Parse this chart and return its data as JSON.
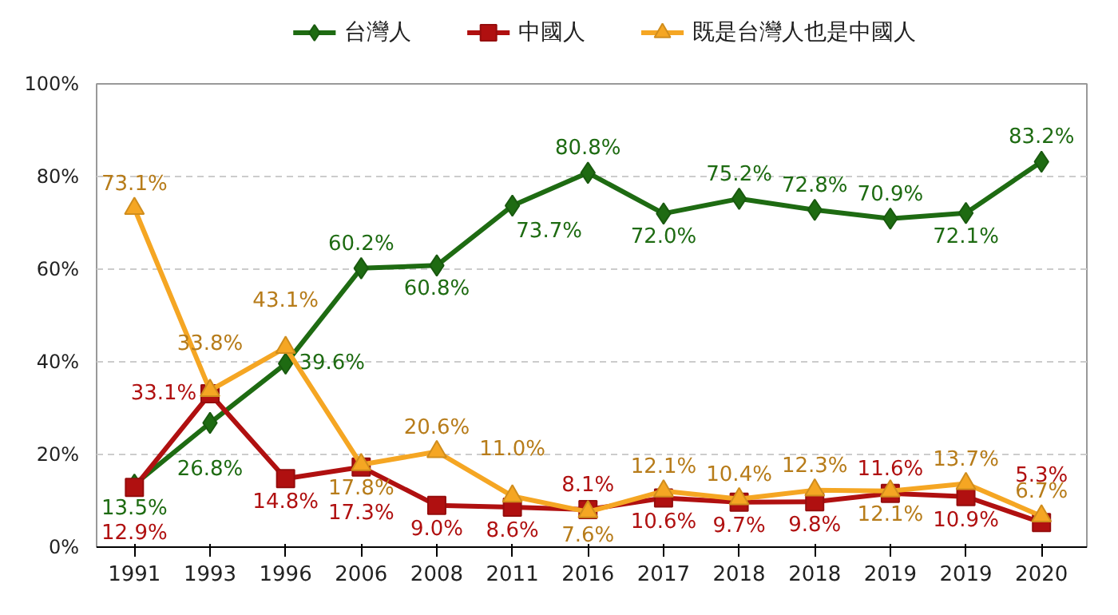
{
  "chart_data": {
    "type": "line",
    "categories": [
      "1991",
      "1993",
      "1996",
      "2006",
      "2008",
      "2011",
      "2016",
      "2017",
      "2018",
      "2018",
      "2019",
      "2019",
      "2020"
    ],
    "series": [
      {
        "name": "台灣人",
        "color": "#1e6b12",
        "marker": "diamond",
        "values": [
          13.5,
          26.8,
          39.6,
          60.2,
          60.8,
          73.7,
          80.8,
          72.0,
          75.2,
          72.8,
          70.9,
          72.1,
          83.2
        ],
        "value_labels": [
          "13.5%",
          "26.8%",
          "39.6%",
          "60.2%",
          "60.8%",
          "73.7%",
          "80.8%",
          "72.0%",
          "75.2%",
          "72.8%",
          "70.9%",
          "72.1%",
          "83.2%"
        ]
      },
      {
        "name": "中國人",
        "color": "#b01010",
        "marker": "square",
        "values": [
          12.9,
          33.1,
          14.8,
          17.3,
          9.0,
          8.6,
          8.1,
          10.6,
          9.7,
          9.8,
          11.6,
          10.9,
          5.3
        ],
        "value_labels": [
          "12.9%",
          "33.1%",
          "14.8%",
          "17.3%",
          "9.0%",
          "8.6%",
          "8.1%",
          "10.6%",
          "9.7%",
          "9.8%",
          "11.6%",
          "10.9%",
          "5.3%"
        ]
      },
      {
        "name": "既是台灣人也是中國人",
        "color": "#f5a623",
        "marker": "triangle",
        "values": [
          73.1,
          33.8,
          43.1,
          17.8,
          20.6,
          11.0,
          7.6,
          12.1,
          10.4,
          12.3,
          12.1,
          13.7,
          6.7
        ],
        "value_labels": [
          "73.1%",
          "33.8%",
          "43.1%",
          "17.8%",
          "20.6%",
          "11.0%",
          "7.6%",
          "12.1%",
          "10.4%",
          "12.3%",
          "12.1%",
          "13.7%",
          "6.7%"
        ]
      }
    ],
    "ylim": [
      0,
      100
    ],
    "yticks": [
      {
        "value": 0,
        "label": "0%"
      },
      {
        "value": 20,
        "label": "20%"
      },
      {
        "value": 40,
        "label": "40%"
      },
      {
        "value": 60,
        "label": "60%"
      },
      {
        "value": 80,
        "label": "80%"
      },
      {
        "value": 100,
        "label": "100%"
      }
    ],
    "grid": "y",
    "legend": "top"
  }
}
